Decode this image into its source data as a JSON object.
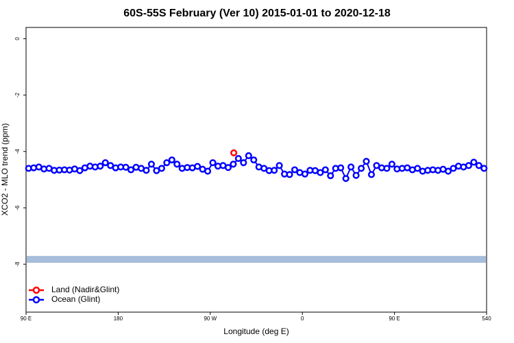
{
  "chart_data": {
    "type": "line",
    "title": "60S-55S February (Ver 10)   2015-01-01 to 2020-12-18",
    "x_label": "Longitude (deg E)",
    "y_label": "XCO2 - MLO trend (ppm)",
    "xlim": [
      90,
      540
    ],
    "ylim": [
      -9.7,
      0.4
    ],
    "xticks": [
      {
        "value": 90,
        "label": "90 E"
      },
      180,
      {
        "value": 270,
        "label": "90 W"
      },
      {
        "value": 360,
        "label": "0"
      },
      {
        "value": 450,
        "label": "90 E"
      },
      540
    ],
    "yticks": [
      0,
      -2,
      -4,
      -6,
      -8
    ],
    "legend": "bottom-left",
    "reference_band": {
      "value": -7.83,
      "color": "#a6bddb"
    },
    "series": [
      {
        "name": "Land (Nadir&Glint)",
        "color": "#ff0000",
        "x": [
          293
        ],
        "values": [
          -4.05
        ]
      },
      {
        "name": "Ocean (Glint)",
        "color": "#0000ff",
        "x": [
          92.5,
          97.5,
          102.5,
          107.5,
          112.5,
          117.5,
          122.5,
          127.5,
          132.5,
          137.5,
          142.5,
          147.5,
          152.5,
          157.5,
          162.5,
          167.5,
          172.5,
          177.5,
          182.5,
          187.5,
          192.5,
          197.5,
          202.5,
          207.5,
          212.5,
          217.5,
          222.5,
          227.5,
          232.5,
          237.5,
          242.5,
          247.5,
          252.5,
          257.5,
          262.5,
          267.5,
          272.5,
          277.5,
          282.5,
          287.5,
          292.5,
          297.5,
          302.5,
          307.5,
          312.5,
          317.5,
          322.5,
          327.5,
          332.5,
          337.5,
          342.5,
          347.5,
          352.5,
          357.5,
          362.5,
          367.5,
          372.5,
          377.5,
          382.5,
          387.5,
          392.5,
          397.5,
          402.5,
          407.5,
          412.5,
          417.5,
          422.5,
          427.5,
          432.5,
          437.5,
          442.5,
          447.5,
          452.5,
          457.5,
          462.5,
          467.5,
          472.5,
          477.5,
          482.5,
          487.5,
          492.5,
          497.5,
          502.5,
          507.5,
          512.5,
          517.5,
          522.5,
          527.5,
          532.5,
          537.5
        ],
        "values": [
          -4.6,
          -4.58,
          -4.55,
          -4.62,
          -4.6,
          -4.67,
          -4.66,
          -4.65,
          -4.66,
          -4.62,
          -4.68,
          -4.58,
          -4.52,
          -4.55,
          -4.52,
          -4.4,
          -4.5,
          -4.58,
          -4.55,
          -4.56,
          -4.65,
          -4.56,
          -4.6,
          -4.67,
          -4.45,
          -4.68,
          -4.6,
          -4.4,
          -4.3,
          -4.45,
          -4.6,
          -4.57,
          -4.58,
          -4.53,
          -4.63,
          -4.7,
          -4.4,
          -4.52,
          -4.5,
          -4.57,
          -4.45,
          -4.25,
          -4.4,
          -4.15,
          -4.3,
          -4.55,
          -4.6,
          -4.68,
          -4.67,
          -4.5,
          -4.8,
          -4.82,
          -4.65,
          -4.75,
          -4.8,
          -4.67,
          -4.68,
          -4.75,
          -4.65,
          -4.86,
          -4.6,
          -4.58,
          -4.96,
          -4.55,
          -4.85,
          -4.6,
          -4.35,
          -4.82,
          -4.5,
          -4.58,
          -4.6,
          -4.45,
          -4.62,
          -4.6,
          -4.58,
          -4.65,
          -4.6,
          -4.7,
          -4.67,
          -4.65,
          -4.67,
          -4.63,
          -4.7,
          -4.6,
          -4.52,
          -4.55,
          -4.5,
          -4.38,
          -4.5,
          -4.6
        ]
      }
    ]
  }
}
